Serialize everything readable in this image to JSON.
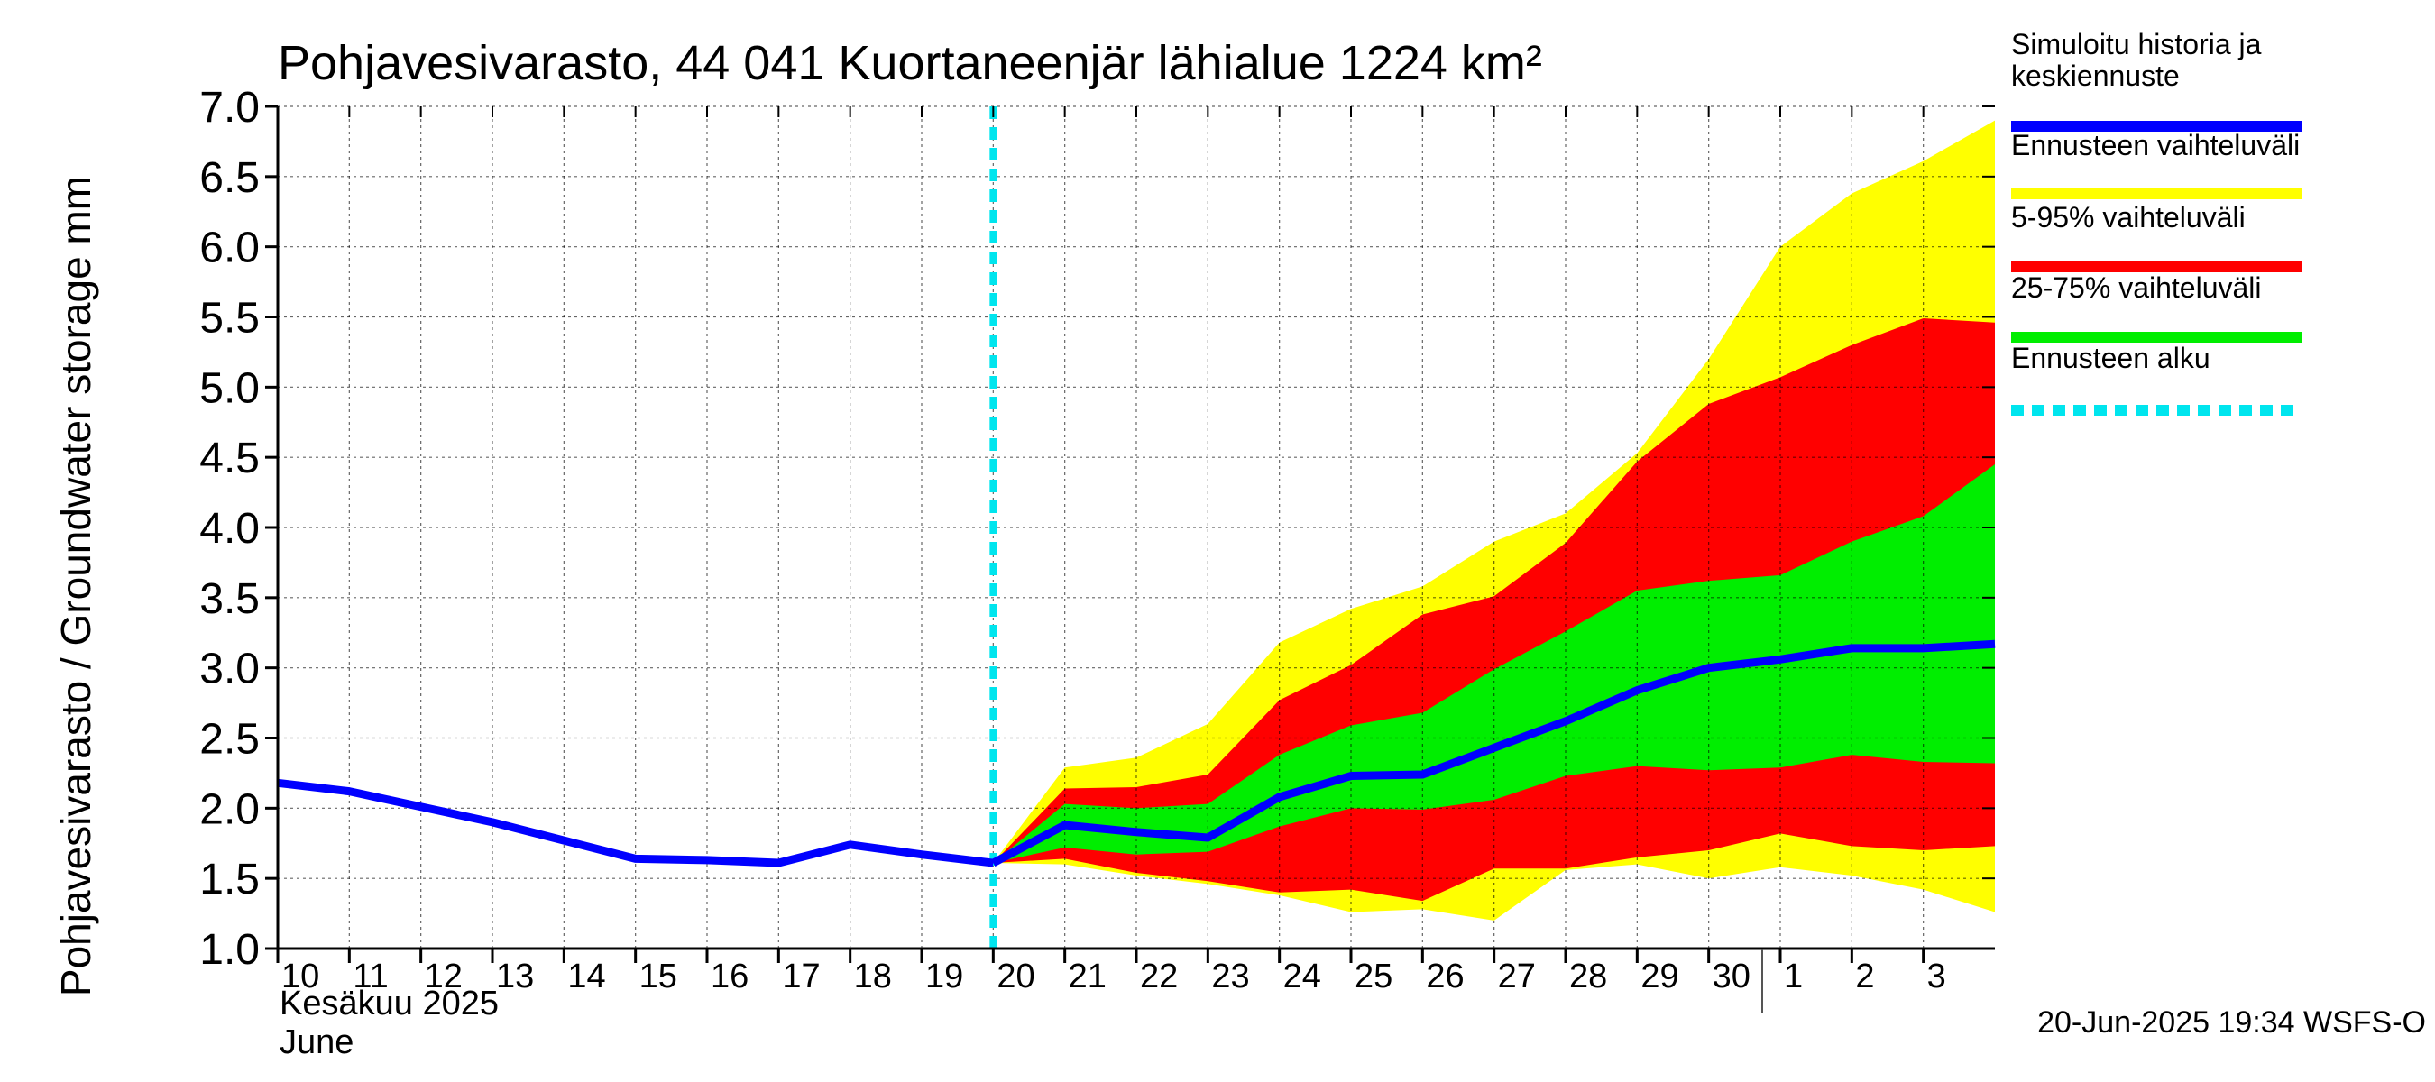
{
  "chart_data": {
    "type": "area",
    "title": "Pohjavesivarasto, 44 041 Kuortaneenjär lähialue 1224 km²",
    "ylabel": "Pohjavesivarasto / Groundwater storage   mm",
    "ylim": [
      1.0,
      7.0
    ],
    "yticks": [
      "1.0",
      "1.5",
      "2.0",
      "2.5",
      "3.0",
      "3.5",
      "4.0",
      "4.5",
      "5.0",
      "5.5",
      "6.0",
      "6.5",
      "7.0"
    ],
    "xlim": [
      "2025-06-10",
      "2025-07-04"
    ],
    "xticks": [
      "10",
      "11",
      "12",
      "13",
      "14",
      "15",
      "16",
      "17",
      "18",
      "19",
      "20",
      "21",
      "22",
      "23",
      "24",
      "25",
      "26",
      "27",
      "28",
      "29",
      "30",
      "1",
      "2",
      "3"
    ],
    "xlabel_line1": "Kesäkuu   2025",
    "xlabel_line2": "June",
    "grid": true,
    "legend_position": "right",
    "footer": "20-Jun-2025 19:34 WSFS-O",
    "forecast_start": "2025-06-20",
    "colors": {
      "history": "#0000ff",
      "range": "#ffff00",
      "p5_95": "#ff0000",
      "p25_75": "#00ee00",
      "forecast_start": "#00e5ee"
    },
    "legend": [
      {
        "label": "Simuloitu historia ja keskiennuste",
        "color": "#0000ff",
        "style": "solid"
      },
      {
        "label": "Ennusteen vaihteluväli",
        "color": "#ffff00",
        "style": "solid"
      },
      {
        "label": "5-95% vaihteluväli",
        "color": "#ff0000",
        "style": "solid"
      },
      {
        "label": "25-75% vaihteluväli",
        "color": "#00ee00",
        "style": "solid"
      },
      {
        "label": "Ennusteen alku",
        "color": "#00e5ee",
        "style": "dashed"
      }
    ],
    "history": {
      "x": [
        "2025-06-10",
        "2025-06-11",
        "2025-06-12",
        "2025-06-13",
        "2025-06-14",
        "2025-06-15",
        "2025-06-16",
        "2025-06-17",
        "2025-06-18",
        "2025-06-19",
        "2025-06-20"
      ],
      "y": [
        2.18,
        2.12,
        2.01,
        1.9,
        1.77,
        1.64,
        1.63,
        1.61,
        1.74,
        1.67,
        1.61
      ]
    },
    "forecast": {
      "x": [
        "2025-06-20",
        "2025-06-21",
        "2025-06-22",
        "2025-06-23",
        "2025-06-24",
        "2025-06-25",
        "2025-06-26",
        "2025-06-27",
        "2025-06-28",
        "2025-06-29",
        "2025-06-30",
        "2025-07-01",
        "2025-07-02",
        "2025-07-03",
        "2025-07-04"
      ],
      "median": [
        1.61,
        1.88,
        1.83,
        1.79,
        2.08,
        2.23,
        2.24,
        2.43,
        2.62,
        2.84,
        3.0,
        3.06,
        3.14,
        3.14,
        3.17
      ],
      "min": [
        1.61,
        1.6,
        1.52,
        1.46,
        1.38,
        1.26,
        1.28,
        1.2,
        1.56,
        1.6,
        1.5,
        1.58,
        1.52,
        1.42,
        1.26
      ],
      "max": [
        1.61,
        2.29,
        2.36,
        2.6,
        3.18,
        3.42,
        3.58,
        3.9,
        4.1,
        4.53,
        5.2,
        6.0,
        6.38,
        6.61,
        6.9
      ],
      "p5": [
        1.61,
        1.64,
        1.54,
        1.48,
        1.4,
        1.42,
        1.34,
        1.57,
        1.57,
        1.65,
        1.7,
        1.82,
        1.73,
        1.7,
        1.73
      ],
      "p95": [
        1.61,
        2.14,
        2.15,
        2.24,
        2.77,
        3.02,
        3.38,
        3.51,
        3.89,
        4.47,
        4.88,
        5.07,
        5.3,
        5.49,
        5.46
      ],
      "p25": [
        1.61,
        1.72,
        1.67,
        1.69,
        1.87,
        2.0,
        1.99,
        2.06,
        2.23,
        2.3,
        2.27,
        2.29,
        2.38,
        2.33,
        2.32
      ],
      "p75": [
        1.61,
        2.03,
        2.0,
        2.03,
        2.38,
        2.59,
        2.68,
        2.99,
        3.26,
        3.55,
        3.62,
        3.66,
        3.9,
        4.08,
        4.45
      ]
    }
  }
}
